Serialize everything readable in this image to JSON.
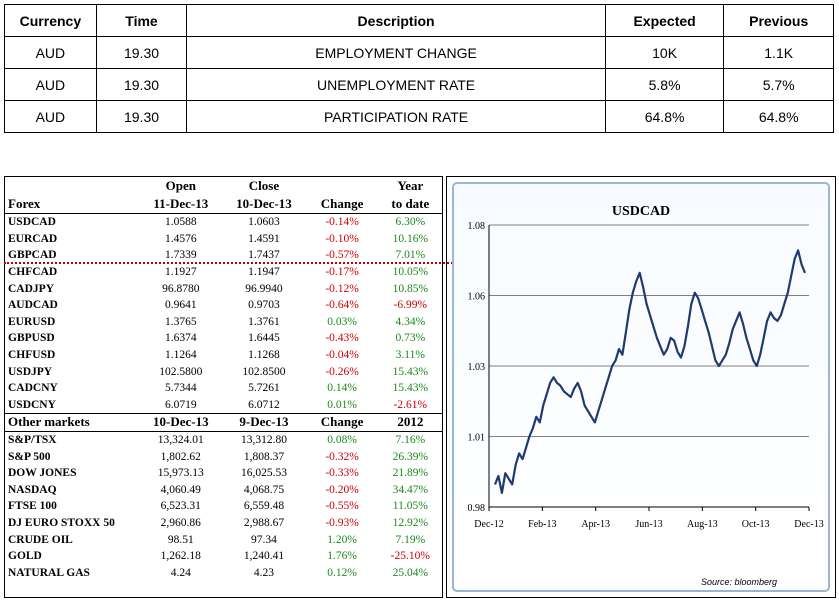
{
  "events": {
    "headers": [
      "Currency",
      "Time",
      "Description",
      "Expected",
      "Previous"
    ],
    "rows": [
      [
        "AUD",
        "19.30",
        "EMPLOYMENT CHANGE",
        "10K",
        "1.1K"
      ],
      [
        "AUD",
        "19.30",
        "UNEMPLOYMENT RATE",
        "5.8%",
        "5.7%"
      ],
      [
        "AUD",
        "19.30",
        "PARTICIPATION RATE",
        "64.8%",
        "64.8%"
      ]
    ]
  },
  "markets": {
    "forex_header": {
      "row1": [
        "",
        "Open",
        "Close",
        "",
        "Year"
      ],
      "row2": [
        "Forex",
        "11-Dec-13",
        "10-Dec-13",
        "Change",
        "to date"
      ]
    },
    "forex_rows": [
      [
        "USDCAD",
        "1.0588",
        "1.0603",
        "-0.14%",
        "6.30%"
      ],
      [
        "EURCAD",
        "1.4576",
        "1.4591",
        "-0.10%",
        "10.16%"
      ],
      [
        "GBPCAD",
        "1.7339",
        "1.7437",
        "-0.57%",
        "7.01%"
      ],
      [
        "CHFCAD",
        "1.1927",
        "1.1947",
        "-0.17%",
        "10.05%"
      ],
      [
        "CADJPY",
        "96.8780",
        "96.9940",
        "-0.12%",
        "10.85%"
      ],
      [
        "AUDCAD",
        "0.9641",
        "0.9703",
        "-0.64%",
        "-6.99%"
      ],
      [
        "EURUSD",
        "1.3765",
        "1.3761",
        "0.03%",
        "4.34%"
      ],
      [
        "GBPUSD",
        "1.6374",
        "1.6445",
        "-0.43%",
        "0.73%"
      ],
      [
        "CHFUSD",
        "1.1264",
        "1.1268",
        "-0.04%",
        "3.11%"
      ],
      [
        "USDJPY",
        "102.5800",
        "102.8500",
        "-0.26%",
        "15.43%"
      ],
      [
        "CADCNY",
        "5.7344",
        "5.7261",
        "0.14%",
        "15.43%"
      ],
      [
        "USDCNY",
        "6.0719",
        "6.0712",
        "0.01%",
        "-2.61%"
      ]
    ],
    "other_header": [
      "Other markets",
      "10-Dec-13",
      "9-Dec-13",
      "Change",
      "2012"
    ],
    "other_rows": [
      [
        "S&P/TSX",
        "13,324.01",
        "13,312.80",
        "0.08%",
        "7.16%"
      ],
      [
        "S&P 500",
        "1,802.62",
        "1,808.37",
        "-0.32%",
        "26.39%"
      ],
      [
        "DOW JONES",
        "15,973.13",
        "16,025.53",
        "-0.33%",
        "21.89%"
      ],
      [
        "NASDAQ",
        "4,060.49",
        "4,068.75",
        "-0.20%",
        "34.47%"
      ],
      [
        "FTSE 100",
        "6,523.31",
        "6,559.48",
        "-0.55%",
        "11.05%"
      ],
      [
        "DJ EURO STOXX 50",
        "2,960.86",
        "2,988.67",
        "-0.93%",
        "12.92%"
      ],
      [
        "CRUDE OIL",
        "98.51",
        "97.34",
        "1.20%",
        "7.19%"
      ],
      [
        "GOLD",
        "1,262.18",
        "1,240.41",
        "1.76%",
        "-25.10%"
      ],
      [
        "NATURAL GAS",
        "4.24",
        "4.23",
        "0.12%",
        "25.04%"
      ]
    ],
    "colors": {
      "positive": "#1a8a1a",
      "negative": "#d00000",
      "dotted_line": "#c00000"
    }
  },
  "chart_data": {
    "type": "line",
    "title": "USDCAD",
    "source": "Source: bloomberg",
    "xlabel": "",
    "ylabel": "",
    "x_ticks": [
      "Dec-12",
      "Feb-13",
      "Apr-13",
      "Jun-13",
      "Aug-13",
      "Oct-13",
      "Dec-13"
    ],
    "y_ticks": [
      "0.98",
      "1.01",
      "1.03",
      "1.06",
      "1.08"
    ],
    "ylim": [
      0.98,
      1.08
    ],
    "grid": true,
    "line_color": "#1f3a6e",
    "series": [
      {
        "values": [
          0.988,
          0.991,
          0.985,
          0.992,
          0.99,
          0.988,
          0.995,
          0.999,
          0.997,
          1.001,
          1.005,
          1.008,
          1.012,
          1.01,
          1.016,
          1.02,
          1.024,
          1.026,
          1.024,
          1.023,
          1.021,
          1.02,
          1.019,
          1.022,
          1.024,
          1.021,
          1.016,
          1.014,
          1.012,
          1.01,
          1.014,
          1.018,
          1.022,
          1.026,
          1.03,
          1.032,
          1.036,
          1.034,
          1.042,
          1.05,
          1.056,
          1.06,
          1.063,
          1.058,
          1.052,
          1.048,
          1.044,
          1.04,
          1.037,
          1.034,
          1.036,
          1.04,
          1.039,
          1.035,
          1.033,
          1.037,
          1.044,
          1.052,
          1.056,
          1.054,
          1.05,
          1.046,
          1.042,
          1.037,
          1.032,
          1.03,
          1.032,
          1.034,
          1.038,
          1.043,
          1.046,
          1.049,
          1.045,
          1.04,
          1.036,
          1.032,
          1.03,
          1.034,
          1.04,
          1.046,
          1.049,
          1.047,
          1.046,
          1.048,
          1.052,
          1.056,
          1.062,
          1.068,
          1.071,
          1.066,
          1.063
        ]
      }
    ]
  }
}
